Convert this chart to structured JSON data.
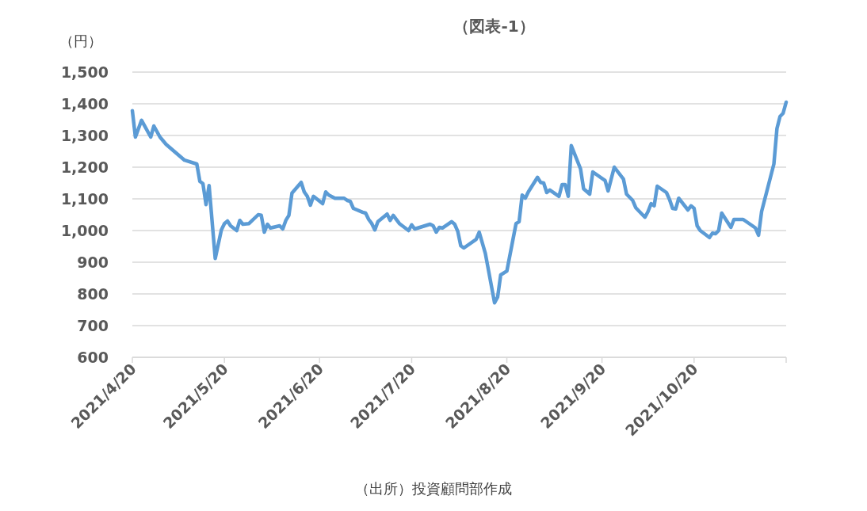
{
  "chart_data": {
    "type": "line",
    "title": "（図表-1）",
    "ylabel": "（円）",
    "annotations": [
      "（出所）投資顧問部作成"
    ],
    "x": [
      "2021-04-20",
      "2021-04-21",
      "2021-04-23",
      "2021-04-26",
      "2021-04-27",
      "2021-04-29",
      "2021-05-01",
      "2021-05-07",
      "2021-05-11",
      "2021-05-12",
      "2021-05-13",
      "2021-05-14",
      "2021-05-15",
      "2021-05-17",
      "2021-05-19",
      "2021-05-20",
      "2021-05-21",
      "2021-05-22",
      "2021-05-24",
      "2021-05-25",
      "2021-05-26",
      "2021-05-28",
      "2021-05-31",
      "2021-06-01",
      "2021-06-02",
      "2021-06-03",
      "2021-06-04",
      "2021-06-07",
      "2021-06-08",
      "2021-06-09",
      "2021-06-10",
      "2021-06-11",
      "2021-06-14",
      "2021-06-15",
      "2021-06-16",
      "2021-06-17",
      "2021-06-18",
      "2021-06-21",
      "2021-06-22",
      "2021-06-23",
      "2021-06-25",
      "2021-06-28",
      "2021-06-29",
      "2021-06-30",
      "2021-07-01",
      "2021-07-04",
      "2021-07-05",
      "2021-07-06",
      "2021-07-07",
      "2021-07-08",
      "2021-07-09",
      "2021-07-12",
      "2021-07-13",
      "2021-07-14",
      "2021-07-16",
      "2021-07-19",
      "2021-07-20",
      "2021-07-21",
      "2021-07-26",
      "2021-07-27",
      "2021-07-28",
      "2021-07-29",
      "2021-07-30",
      "2021-08-02",
      "2021-08-03",
      "2021-08-04",
      "2021-08-05",
      "2021-08-06",
      "2021-08-10",
      "2021-08-11",
      "2021-08-13",
      "2021-08-16",
      "2021-08-17",
      "2021-08-18",
      "2021-08-20",
      "2021-08-23",
      "2021-08-24",
      "2021-08-25",
      "2021-08-26",
      "2021-08-27",
      "2021-08-30",
      "2021-08-31",
      "2021-09-01",
      "2021-09-02",
      "2021-09-03",
      "2021-09-06",
      "2021-09-07",
      "2021-09-08",
      "2021-09-09",
      "2021-09-10",
      "2021-09-13",
      "2021-09-14",
      "2021-09-16",
      "2021-09-17",
      "2021-09-21",
      "2021-09-22",
      "2021-09-24",
      "2021-09-27",
      "2021-09-28",
      "2021-09-30",
      "2021-10-01",
      "2021-10-04",
      "2021-10-05",
      "2021-10-06",
      "2021-10-07",
      "2021-10-08",
      "2021-10-11",
      "2021-10-12",
      "2021-10-13",
      "2021-10-14",
      "2021-10-15",
      "2021-10-18",
      "2021-10-19",
      "2021-10-20",
      "2021-10-21",
      "2021-10-22",
      "2021-10-25",
      "2021-10-26",
      "2021-10-27",
      "2021-10-28",
      "2021-10-29",
      "2021-11-01",
      "2021-11-02",
      "2021-11-05",
      "2021-11-08",
      "2021-11-09",
      "2021-11-10",
      "2021-11-11",
      "2021-11-15",
      "2021-11-16",
      "2021-11-17",
      "2021-11-18",
      "2021-11-19"
    ],
    "series": [
      {
        "color": "#5b9bd5",
        "values": [
          1378,
          1295,
          1348,
          1295,
          1330,
          1295,
          1272,
          1222,
          1210,
          1155,
          1148,
          1082,
          1142,
          912,
          1002,
          1022,
          1030,
          1015,
          1000,
          1032,
          1020,
          1022,
          1050,
          1048,
          995,
          1020,
          1008,
          1015,
          1005,
          1032,
          1048,
          1118,
          1152,
          1122,
          1108,
          1080,
          1108,
          1085,
          1122,
          1112,
          1102,
          1102,
          1095,
          1092,
          1070,
          1058,
          1055,
          1035,
          1022,
          1002,
          1028,
          1052,
          1032,
          1048,
          1022,
          1000,
          1018,
          1005,
          1020,
          1015,
          995,
          1010,
          1008,
          1028,
          1020,
          998,
          952,
          945,
          972,
          995,
          928,
          772,
          790,
          860,
          872,
          1022,
          1028,
          1112,
          1102,
          1122,
          1168,
          1152,
          1150,
          1120,
          1128,
          1108,
          1145,
          1145,
          1108,
          1268,
          1195,
          1132,
          1115,
          1185,
          1158,
          1125,
          1200,
          1162,
          1115,
          1095,
          1072,
          1042,
          1060,
          1085,
          1078,
          1140,
          1120,
          1098,
          1070,
          1068,
          1102,
          1065,
          1078,
          1070,
          1015,
          1000,
          978,
          992,
          990,
          1000,
          1055,
          1010,
          1035,
          1035,
          1015,
          1008,
          985,
          1060,
          1210,
          1322,
          1360,
          1370,
          1405
        ]
      }
    ],
    "xlim": [
      "2021-04-20",
      "2021-11-19"
    ],
    "xticks": [
      {
        "value": "2021-04-20",
        "label": "2021/4/20"
      },
      {
        "value": "2021-05-20",
        "label": "2021/5/20"
      },
      {
        "value": "2021-06-20",
        "label": "2021/6/20"
      },
      {
        "value": "2021-07-20",
        "label": "2021/7/20"
      },
      {
        "value": "2021-08-20",
        "label": "2021/8/20"
      },
      {
        "value": "2021-09-20",
        "label": "2021/9/20"
      },
      {
        "value": "2021-10-20",
        "label": "2021/10/20"
      },
      {
        "value": "2021-11-19",
        "label": null
      }
    ],
    "ylim": [
      600,
      1500
    ],
    "yticks": [
      {
        "value": 600,
        "label": "600"
      },
      {
        "value": 700,
        "label": "700"
      },
      {
        "value": 800,
        "label": "800"
      },
      {
        "value": 900,
        "label": "900"
      },
      {
        "value": 1000,
        "label": "1,000"
      },
      {
        "value": 1100,
        "label": "1,100"
      },
      {
        "value": 1200,
        "label": "1,200"
      },
      {
        "value": 1300,
        "label": "1,300"
      },
      {
        "value": 1400,
        "label": "1,400"
      },
      {
        "value": 1500,
        "label": "1,500"
      }
    ],
    "grid": "y",
    "line_style": "solid",
    "marker": "none"
  }
}
